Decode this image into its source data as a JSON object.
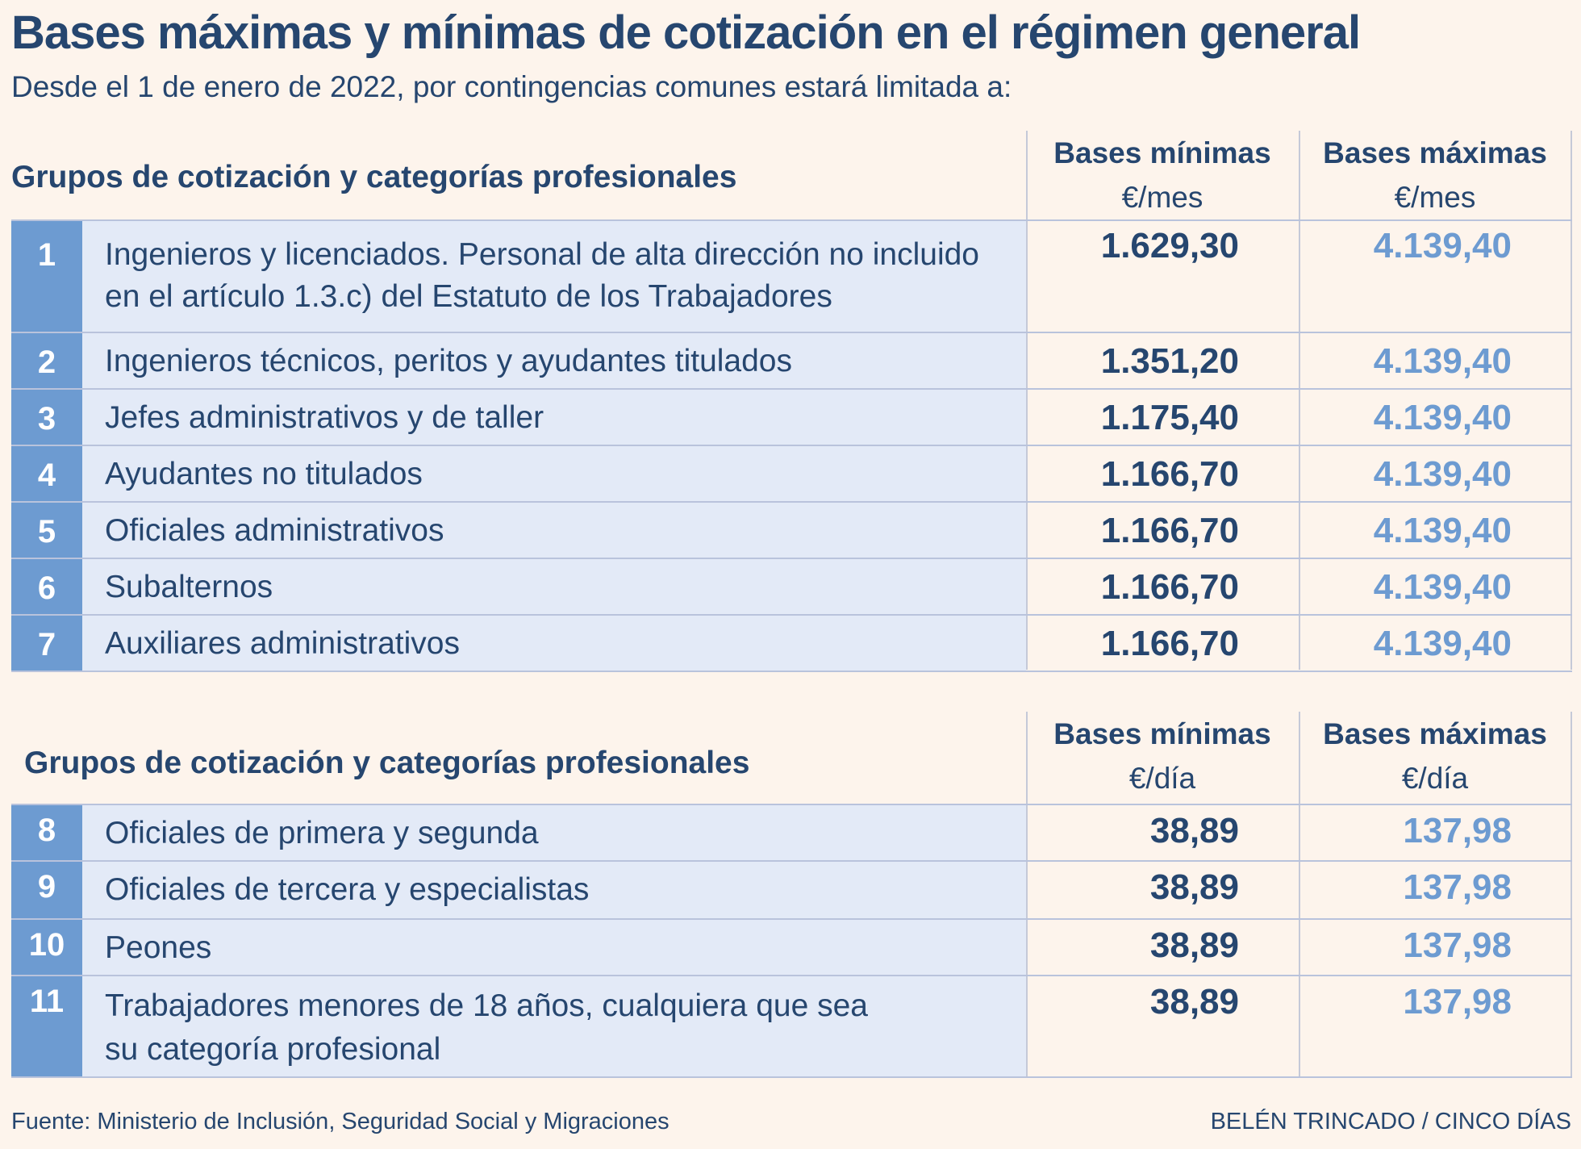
{
  "title": "Bases máximas y mínimas de cotización en el régimen general",
  "subtitle": "Desde el 1 de enero de 2022, por contingencias comunes estará limitada a:",
  "colors": {
    "dark_blue": "#26466f",
    "light_blue": "#6d9bd1",
    "row_bg": "#e3eaf7",
    "page_bg": "#fdf4ec"
  },
  "table1": {
    "heading": "Grupos de cotización y categorías profesionales",
    "col_min": "Bases mínimas",
    "col_max": "Bases máximas",
    "unit": "€/mes",
    "rows": [
      {
        "num": "1",
        "desc_line1": "Ingenieros y licenciados. Personal de alta dirección no incluido",
        "desc_line2": "en el artículo 1.3.c) del Estatuto de los Trabajadores",
        "min": "1.629,30",
        "max": "4.139,40"
      },
      {
        "num": "2",
        "desc_line1": "Ingenieros técnicos, peritos y ayudantes titulados",
        "min": "1.351,20",
        "max": "4.139,40"
      },
      {
        "num": "3",
        "desc_line1": "Jefes administrativos y de taller",
        "min": "1.175,40",
        "max": "4.139,40"
      },
      {
        "num": "4",
        "desc_line1": "Ayudantes no titulados",
        "min": "1.166,70",
        "max": "4.139,40"
      },
      {
        "num": "5",
        "desc_line1": "Oficiales administrativos",
        "min": "1.166,70",
        "max": "4.139,40"
      },
      {
        "num": "6",
        "desc_line1": "Subalternos",
        "min": "1.166,70",
        "max": "4.139,40"
      },
      {
        "num": "7",
        "desc_line1": "Auxiliares administrativos",
        "min": "1.166,70",
        "max": "4.139,40"
      }
    ]
  },
  "table2": {
    "heading": "Grupos de cotización y categorías profesionales",
    "col_min": "Bases mínimas",
    "col_max": "Bases máximas",
    "unit": "€/día",
    "rows": [
      {
        "num": "8",
        "desc_line1": "Oficiales de primera y segunda",
        "min": "38,89",
        "max": "137,98"
      },
      {
        "num": "9",
        "desc_line1": "Oficiales de tercera y especialistas",
        "min": "38,89",
        "max": "137,98"
      },
      {
        "num": "10",
        "desc_line1": "Peones",
        "min": "38,89",
        "max": "137,98"
      },
      {
        "num": "11",
        "desc_line1": "Trabajadores menores de 18 años, cualquiera que sea",
        "desc_line2": "su categoría profesional",
        "min": "38,89",
        "max": "137,98"
      }
    ]
  },
  "footer": {
    "source": "Fuente: Ministerio de Inclusión, Seguridad Social y Migraciones",
    "credit": "BELÉN TRINCADO / CINCO DÍAS"
  }
}
